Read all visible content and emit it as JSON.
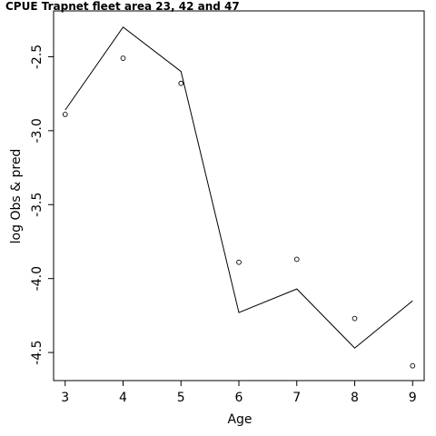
{
  "chart_data": {
    "type": "line",
    "title": "CPUE Trapnet fleet area 23, 42 and 47",
    "xlabel": "Age",
    "ylabel": "log Obs & pred",
    "xlim": [
      2.8,
      9.2
    ],
    "ylim": [
      -4.69,
      -2.19
    ],
    "x_ticks": [
      3,
      4,
      5,
      6,
      7,
      8,
      9
    ],
    "y_ticks": [
      -2.5,
      -3.0,
      -3.5,
      -4.0,
      -4.5
    ],
    "x_tick_labels": [
      "3",
      "4",
      "5",
      "6",
      "7",
      "8",
      "9"
    ],
    "y_tick_labels": [
      "-2.5",
      "-3.0",
      "-3.5",
      "-4.0",
      "-4.5"
    ],
    "grid": false,
    "series": [
      {
        "kind": "points",
        "x": [
          3,
          4,
          5,
          6,
          7,
          8,
          9
        ],
        "y": [
          -2.89,
          -2.51,
          -2.68,
          -3.89,
          -3.87,
          -4.27,
          -4.59
        ]
      },
      {
        "kind": "line",
        "x": [
          3,
          4,
          5,
          6,
          7,
          8,
          9
        ],
        "y": [
          -2.86,
          -2.3,
          -2.6,
          -4.23,
          -4.07,
          -4.47,
          -4.15
        ]
      }
    ]
  }
}
